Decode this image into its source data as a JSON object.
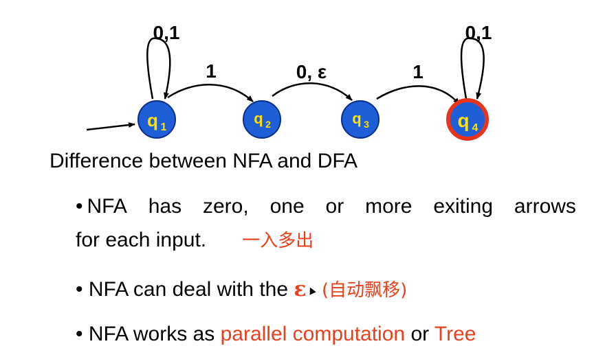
{
  "diagram": {
    "states": [
      {
        "id": "q1",
        "label": "q",
        "sub": "1",
        "start": true,
        "accept": false
      },
      {
        "id": "q2",
        "label": "q",
        "sub": "2",
        "start": false,
        "accept": false
      },
      {
        "id": "q3",
        "label": "q",
        "sub": "3",
        "start": false,
        "accept": false
      },
      {
        "id": "q4",
        "label": "q",
        "sub": "4",
        "start": false,
        "accept": true
      }
    ],
    "transitions": [
      {
        "from": "q1",
        "to": "q1",
        "label": "0,1"
      },
      {
        "from": "q1",
        "to": "q2",
        "label": "1"
      },
      {
        "from": "q2",
        "to": "q3",
        "label": "0, ε"
      },
      {
        "from": "q3",
        "to": "q4",
        "label": "1"
      },
      {
        "from": "q4",
        "to": "q4",
        "label": "0,1"
      }
    ],
    "colors": {
      "state_fill": "#1e5fd8",
      "state_label": "#ffe000",
      "accept_ring": "#e8341c"
    }
  },
  "heading": "Difference between NFA and DFA",
  "bullets": {
    "b1_words": [
      "NFA",
      "has",
      "zero,",
      "one",
      "or",
      "more",
      "exiting",
      "arrows"
    ],
    "b1_line2": "for each input.",
    "b1_cjk": "一入多出",
    "b2_text": "NFA can deal with  the",
    "b2_eps": "ε",
    "b2_cjk": "(自动飘移)",
    "b3_text": "NFA works as",
    "b3_red1": "parallel computation",
    "b3_mid": "or",
    "b3_red2": "Tree",
    "dot": "•"
  }
}
